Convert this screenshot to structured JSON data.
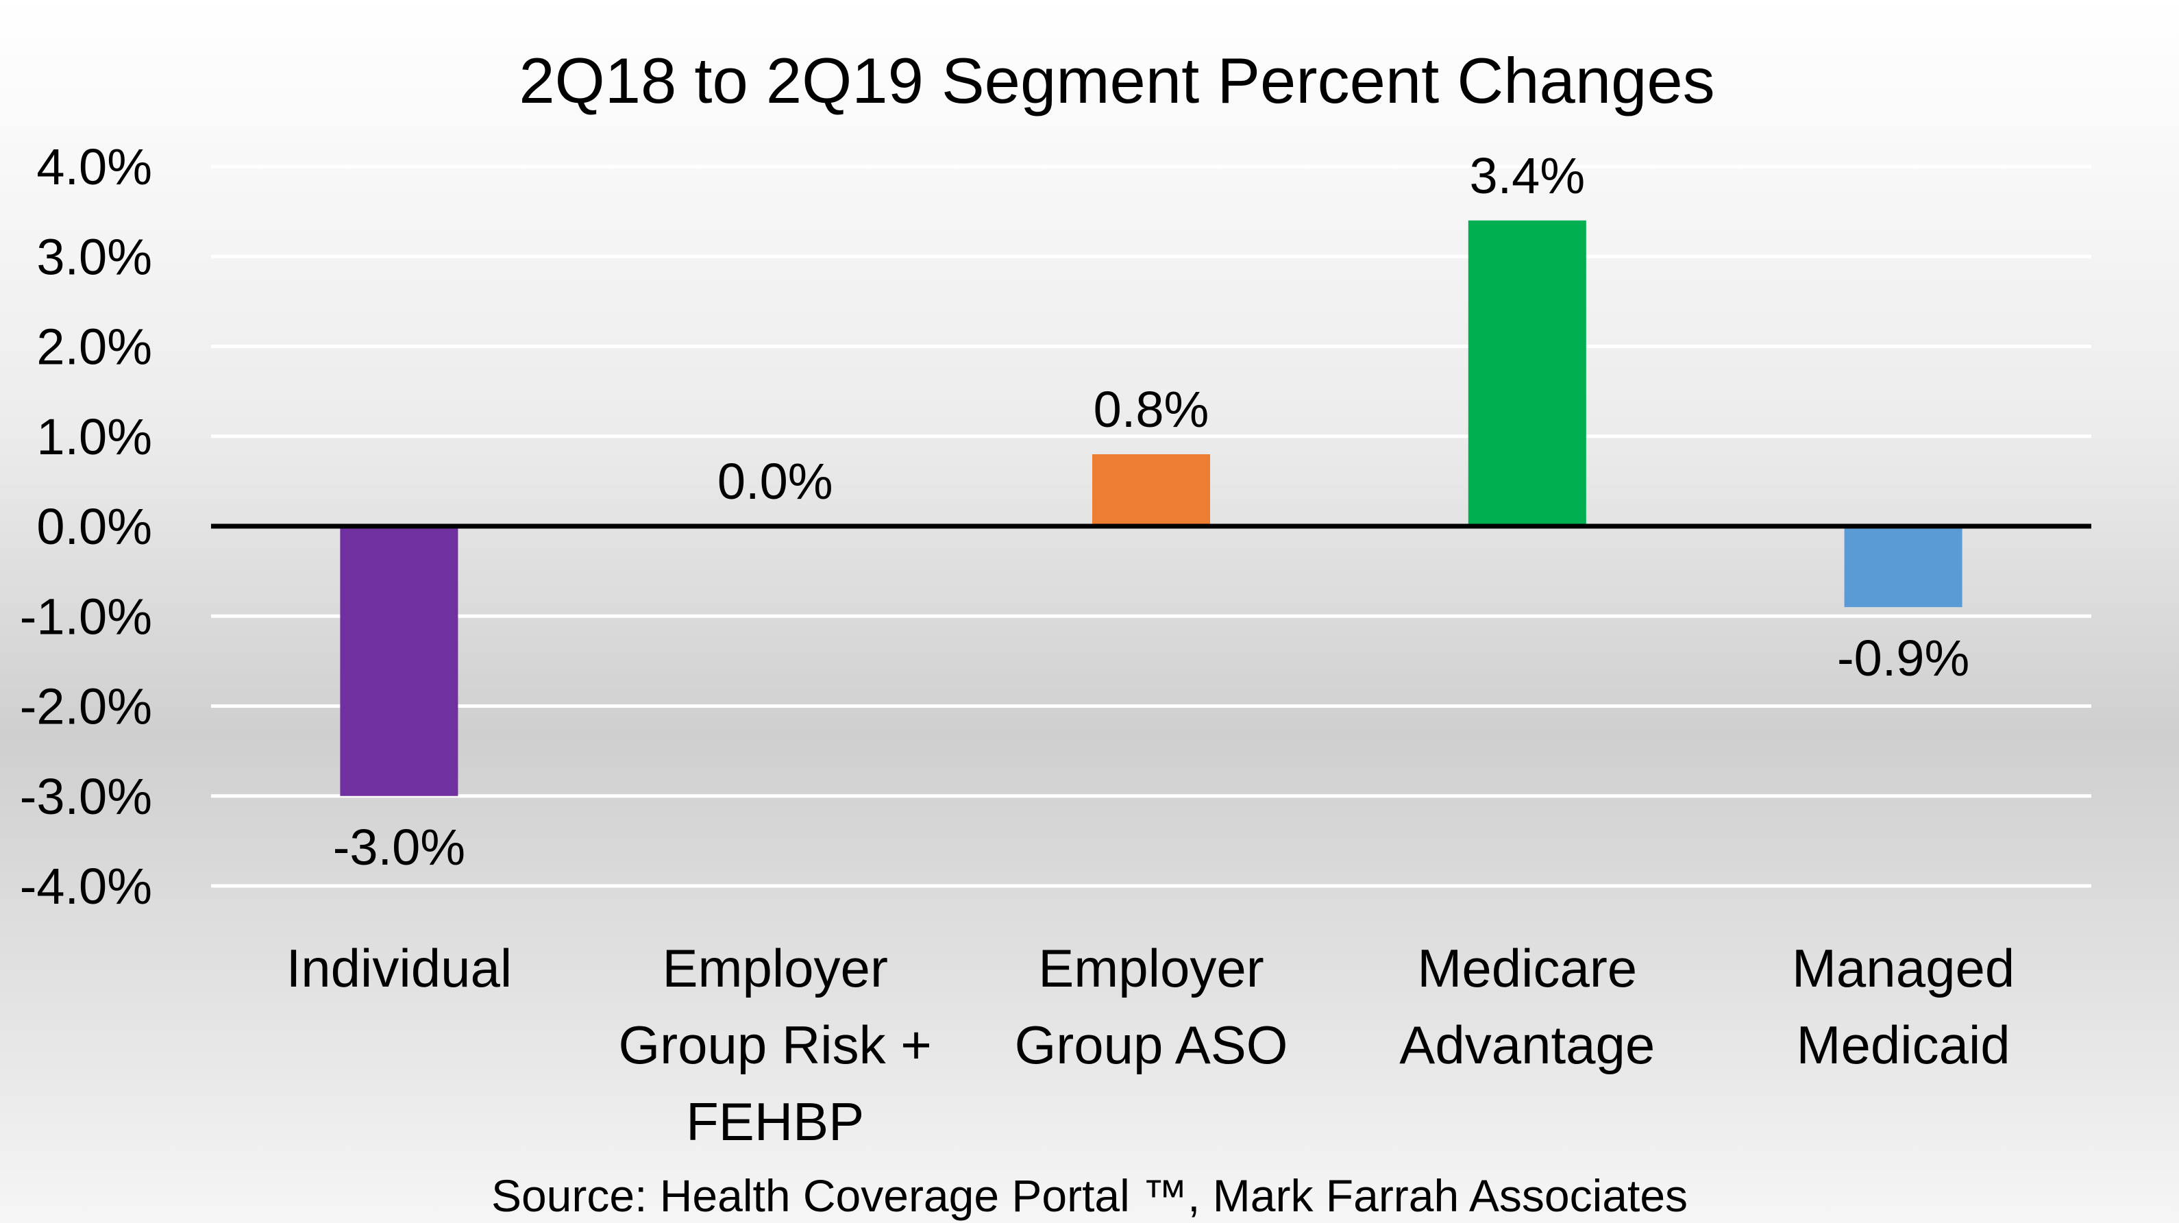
{
  "chart_data": {
    "type": "bar",
    "title": "2Q18 to 2Q19 Segment Percent Changes",
    "categories": [
      [
        "Individual"
      ],
      [
        "Employer",
        "Group Risk +",
        "FEHBP"
      ],
      [
        "Employer",
        "Group ASO"
      ],
      [
        "Medicare",
        "Advantage"
      ],
      [
        "Managed",
        "Medicaid"
      ]
    ],
    "values": [
      -3.0,
      0.0,
      0.8,
      3.4,
      -0.9
    ],
    "value_labels": [
      "-3.0%",
      "0.0%",
      "0.8%",
      "3.4%",
      "-0.9%"
    ],
    "colors": [
      "#7030a0",
      "#808080",
      "#ed7d31",
      "#00b050",
      "#5b9bd5"
    ],
    "ylim": [
      -4.0,
      4.0
    ],
    "yticks": [
      {
        "value": 4.0,
        "label": "4.0%"
      },
      {
        "value": 3.0,
        "label": "3.0%"
      },
      {
        "value": 2.0,
        "label": "2.0%"
      },
      {
        "value": 1.0,
        "label": "1.0%"
      },
      {
        "value": 0.0,
        "label": "0.0%"
      },
      {
        "value": -1.0,
        "label": "-1.0%"
      },
      {
        "value": -2.0,
        "label": "-2.0%"
      },
      {
        "value": -3.0,
        "label": "-3.0%"
      },
      {
        "value": -4.0,
        "label": "-4.0%"
      }
    ],
    "grid": true,
    "legend": "none",
    "xlabel": "",
    "ylabel": ""
  },
  "source": "Source: Health Coverage Portal ™, Mark Farrah Associates"
}
